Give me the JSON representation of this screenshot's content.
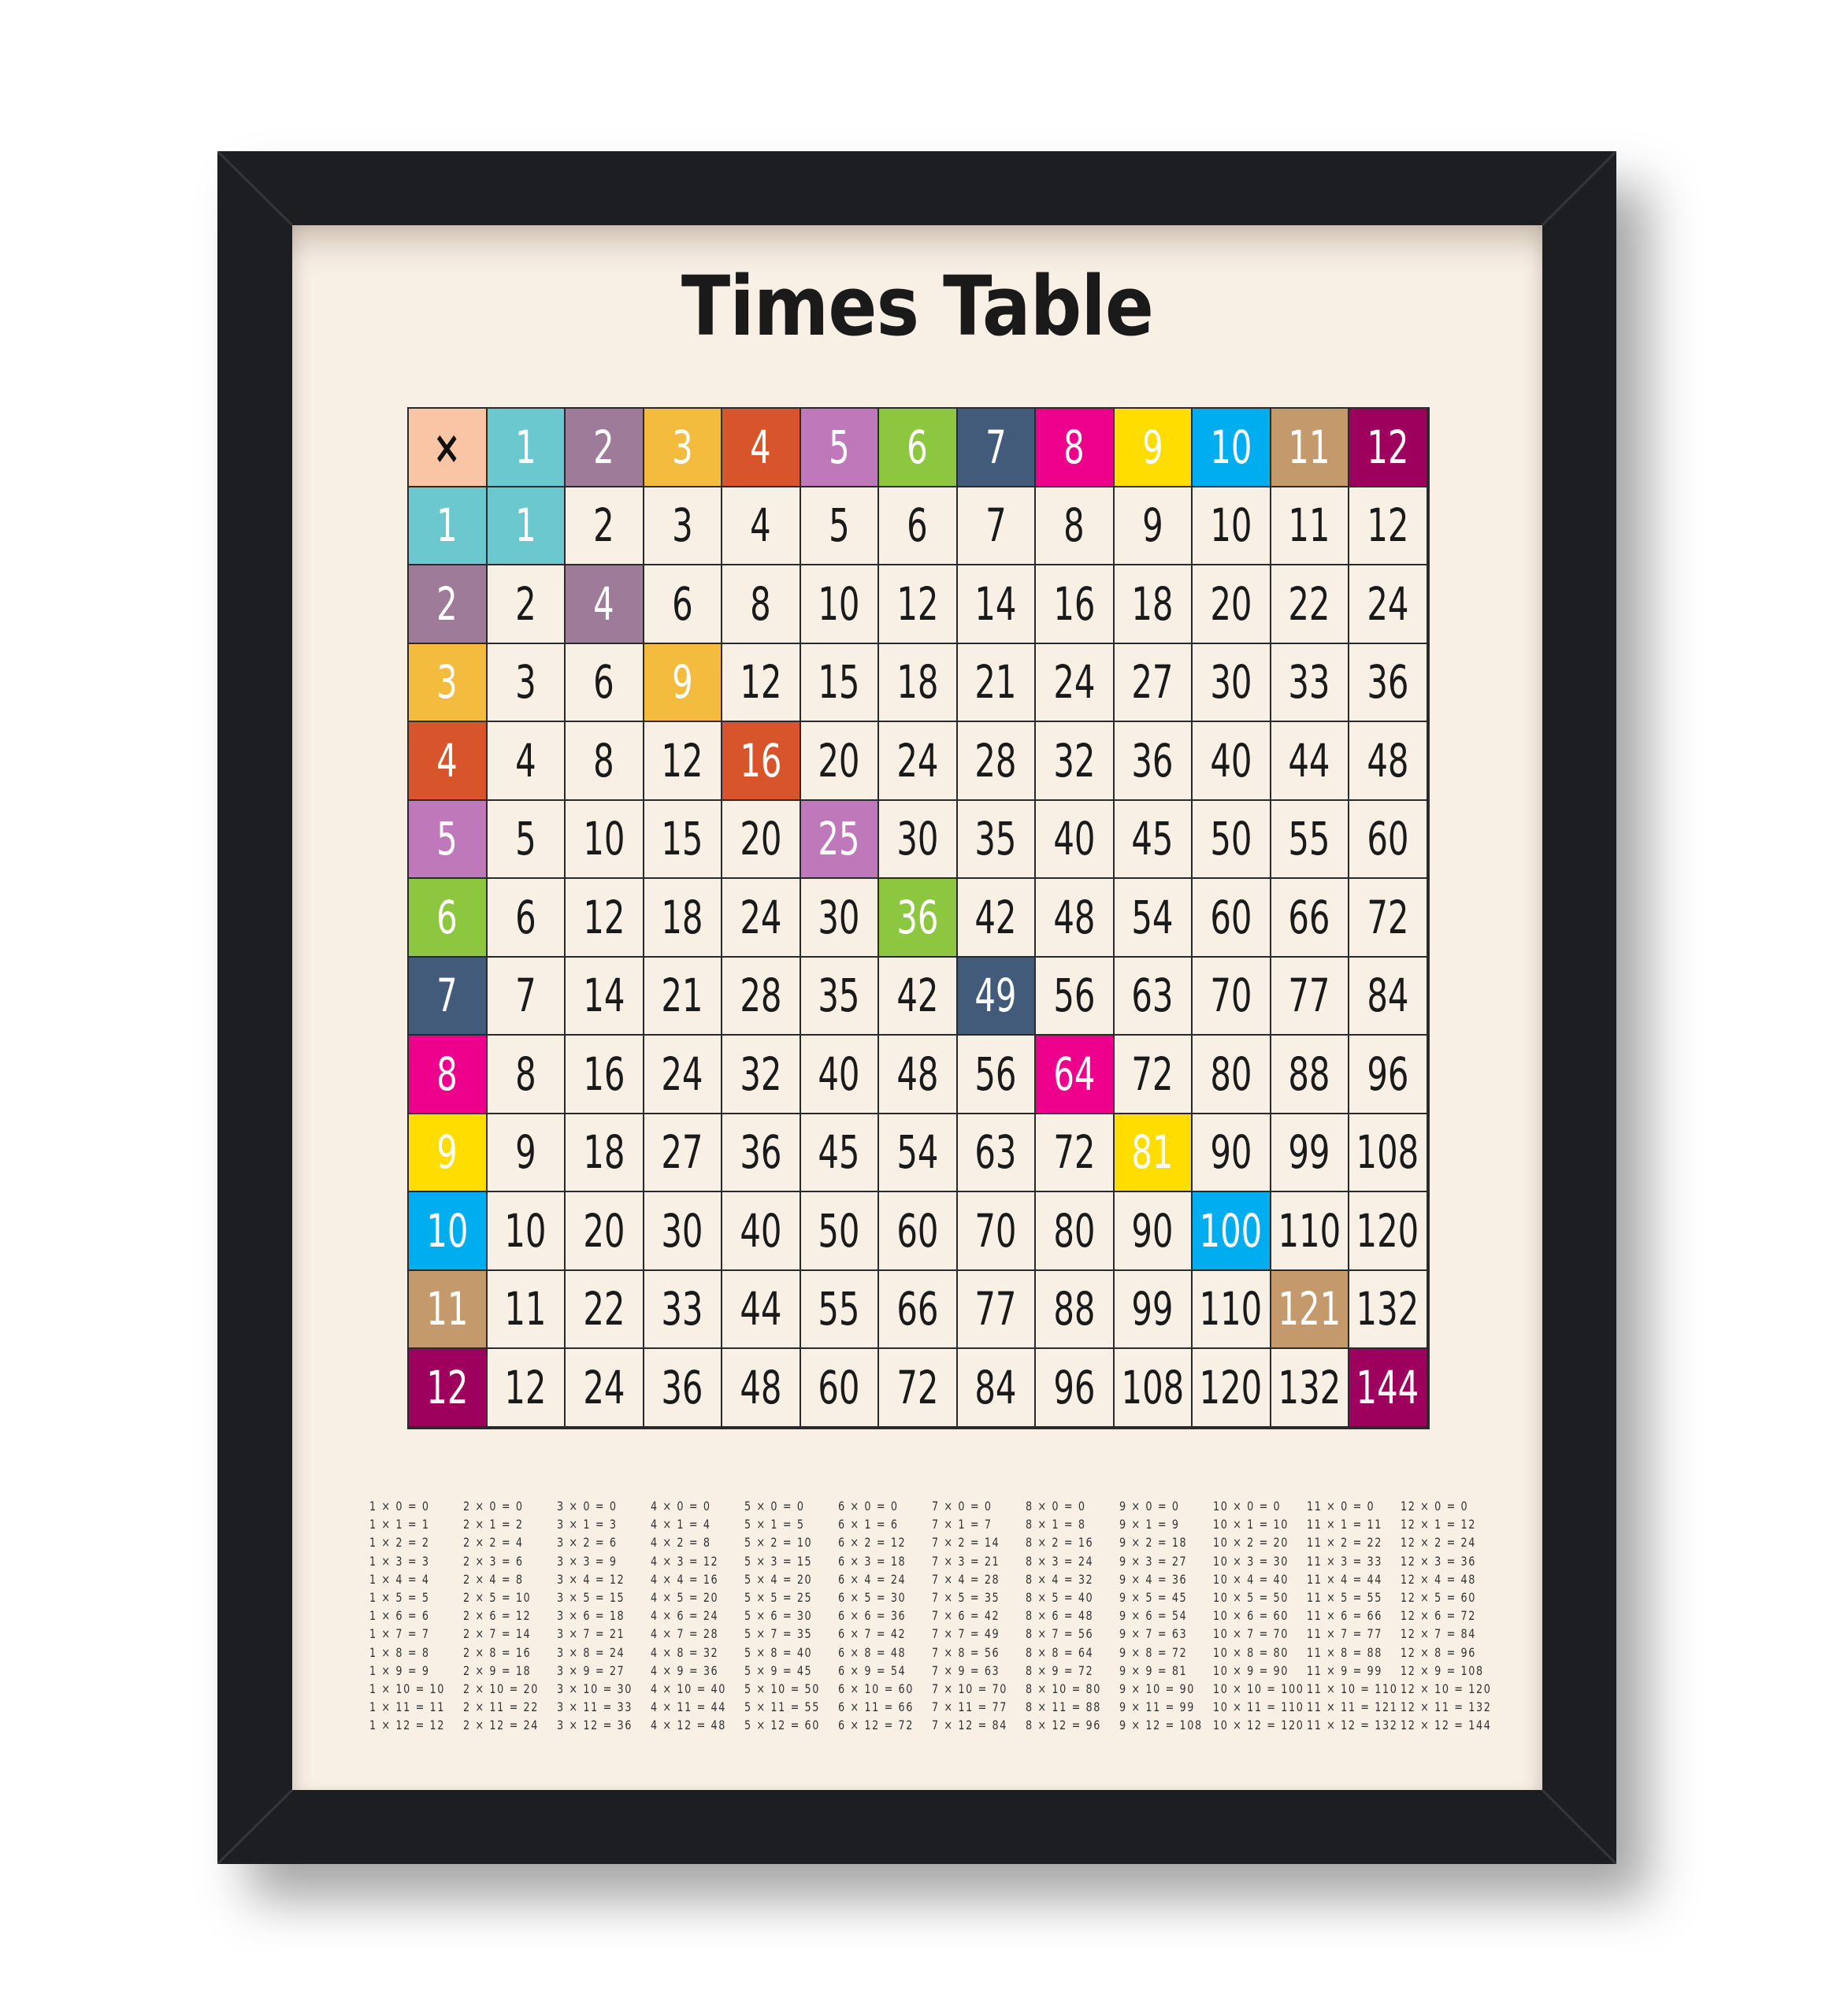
{
  "poster": {
    "title": "Times Table",
    "frame_color": "#1d1e21",
    "mat_color": "#f8efe5"
  },
  "table": {
    "corner": {
      "label": "×",
      "color": "#f9c5a5"
    },
    "headers": [
      {
        "label": "1",
        "color": "#6cc8cf"
      },
      {
        "label": "2",
        "color": "#9e7b99"
      },
      {
        "label": "3",
        "color": "#f3bc3e"
      },
      {
        "label": "4",
        "color": "#d8552b"
      },
      {
        "label": "5",
        "color": "#bf78b9"
      },
      {
        "label": "6",
        "color": "#8dc63f"
      },
      {
        "label": "7",
        "color": "#435b7a"
      },
      {
        "label": "8",
        "color": "#ec008c"
      },
      {
        "label": "9",
        "color": "#ffdd00"
      },
      {
        "label": "10",
        "color": "#00aeef"
      },
      {
        "label": "11",
        "color": "#c49a6c"
      },
      {
        "label": "12",
        "color": "#9e005d"
      }
    ],
    "rows": [
      [
        "1",
        "2",
        "3",
        "4",
        "5",
        "6",
        "7",
        "8",
        "9",
        "10",
        "11",
        "12"
      ],
      [
        "2",
        "4",
        "6",
        "8",
        "10",
        "12",
        "14",
        "16",
        "18",
        "20",
        "22",
        "24"
      ],
      [
        "3",
        "6",
        "9",
        "12",
        "15",
        "18",
        "21",
        "24",
        "27",
        "30",
        "33",
        "36"
      ],
      [
        "4",
        "8",
        "12",
        "16",
        "20",
        "24",
        "28",
        "32",
        "36",
        "40",
        "44",
        "48"
      ],
      [
        "5",
        "10",
        "15",
        "20",
        "25",
        "30",
        "35",
        "40",
        "45",
        "50",
        "55",
        "60"
      ],
      [
        "6",
        "12",
        "18",
        "24",
        "30",
        "36",
        "42",
        "48",
        "54",
        "60",
        "66",
        "72"
      ],
      [
        "7",
        "14",
        "21",
        "28",
        "35",
        "42",
        "49",
        "56",
        "63",
        "70",
        "77",
        "84"
      ],
      [
        "8",
        "16",
        "24",
        "32",
        "40",
        "48",
        "56",
        "64",
        "72",
        "80",
        "88",
        "96"
      ],
      [
        "9",
        "18",
        "27",
        "36",
        "45",
        "54",
        "63",
        "72",
        "81",
        "90",
        "99",
        "108"
      ],
      [
        "10",
        "20",
        "30",
        "40",
        "50",
        "60",
        "70",
        "80",
        "90",
        "100",
        "110",
        "120"
      ],
      [
        "11",
        "22",
        "33",
        "44",
        "55",
        "66",
        "77",
        "88",
        "99",
        "110",
        "121",
        "132"
      ],
      [
        "12",
        "24",
        "36",
        "48",
        "60",
        "72",
        "84",
        "96",
        "108",
        "120",
        "132",
        "144"
      ]
    ]
  },
  "facts": [
    [
      "1 × 0 = 0",
      "1 × 1 = 1",
      "1 × 2 = 2",
      "1 × 3 = 3",
      "1 × 4 = 4",
      "1 × 5 = 5",
      "1 × 6 = 6",
      "1 × 7 = 7",
      "1 × 8 = 8",
      "1 × 9 = 9",
      "1 × 10 = 10",
      "1 × 11 = 11",
      "1 × 12 = 12"
    ],
    [
      "2 × 0 = 0",
      "2 × 1 = 2",
      "2 × 2 = 4",
      "2 × 3 = 6",
      "2 × 4 = 8",
      "2 × 5 = 10",
      "2 × 6 = 12",
      "2 × 7 = 14",
      "2 × 8 = 16",
      "2 × 9 = 18",
      "2 × 10 = 20",
      "2 × 11 = 22",
      "2 × 12 = 24"
    ],
    [
      "3 × 0 = 0",
      "3 × 1 = 3",
      "3 × 2 = 6",
      "3 × 3 = 9",
      "3 × 4 = 12",
      "3 × 5 = 15",
      "3 × 6 = 18",
      "3 × 7 = 21",
      "3 × 8 = 24",
      "3 × 9 = 27",
      "3 × 10 = 30",
      "3 × 11 = 33",
      "3 × 12 = 36"
    ],
    [
      "4 × 0 = 0",
      "4 × 1 = 4",
      "4 × 2 = 8",
      "4 × 3 = 12",
      "4 × 4 = 16",
      "4 × 5 = 20",
      "4 × 6 = 24",
      "4 × 7 = 28",
      "4 × 8 = 32",
      "4 × 9 = 36",
      "4 × 10 = 40",
      "4 × 11 = 44",
      "4 × 12 = 48"
    ],
    [
      "5 × 0 = 0",
      "5 × 1 = 5",
      "5 × 2 = 10",
      "5 × 3 = 15",
      "5 × 4 = 20",
      "5 × 5 = 25",
      "5 × 6 = 30",
      "5 × 7 = 35",
      "5 × 8 = 40",
      "5 × 9 = 45",
      "5 × 10 = 50",
      "5 × 11 = 55",
      "5 × 12 = 60"
    ],
    [
      "6 × 0 = 0",
      "6 × 1 = 6",
      "6 × 2 = 12",
      "6 × 3 = 18",
      "6 × 4 = 24",
      "6 × 5 = 30",
      "6 × 6 = 36",
      "6 × 7 = 42",
      "6 × 8 = 48",
      "6 × 9 = 54",
      "6 × 10 = 60",
      "6 × 11 = 66",
      "6 × 12 = 72"
    ],
    [
      "7 × 0 = 0",
      "7 × 1 = 7",
      "7 × 2 = 14",
      "7 × 3 = 21",
      "7 × 4 = 28",
      "7 × 5 = 35",
      "7 × 6 = 42",
      "7 × 7 = 49",
      "7 × 8 = 56",
      "7 × 9 = 63",
      "7 × 10 = 70",
      "7 × 11 = 77",
      "7 × 12 = 84"
    ],
    [
      "8 × 0 = 0",
      "8 × 1 = 8",
      "8 × 2 = 16",
      "8 × 3 = 24",
      "8 × 4 = 32",
      "8 × 5 = 40",
      "8 × 6 = 48",
      "8 × 7 = 56",
      "8 × 8 = 64",
      "8 × 9 = 72",
      "8 × 10 = 80",
      "8 × 11 = 88",
      "8 × 12 = 96"
    ],
    [
      "9 × 0 = 0",
      "9 × 1 = 9",
      "9 × 2 = 18",
      "9 × 3 = 27",
      "9 × 4 = 36",
      "9 × 5 = 45",
      "9 × 6 = 54",
      "9 × 7 = 63",
      "9 × 8 = 72",
      "9 × 9 = 81",
      "9 × 10 = 90",
      "9 × 11 = 99",
      "9 × 12 = 108"
    ],
    [
      "10 × 0 = 0",
      "10 × 1 = 10",
      "10 × 2 = 20",
      "10 × 3 = 30",
      "10 × 4 = 40",
      "10 × 5 = 50",
      "10 × 6 = 60",
      "10 × 7 = 70",
      "10 × 8 = 80",
      "10 × 9 = 90",
      "10 × 10 = 100",
      "10 × 11 = 110",
      "10 × 12 = 120"
    ],
    [
      "11 × 0 = 0",
      "11 × 1 = 11",
      "11 × 2 = 22",
      "11 × 3 = 33",
      "11 × 4 = 44",
      "11 × 5 = 55",
      "11 × 6 = 66",
      "11 × 7 = 77",
      "11 × 8 = 88",
      "11 × 9 = 99",
      "11 × 10 = 110",
      "11 × 11 = 121",
      "11 × 12 = 132"
    ],
    [
      "12 × 0 = 0",
      "12 × 1 = 12",
      "12 × 2 = 24",
      "12 × 3 = 36",
      "12 × 4 = 48",
      "12 × 5 = 60",
      "12 × 6 = 72",
      "12 × 7 = 84",
      "12 × 8 = 96",
      "12 × 9 = 108",
      "12 × 10 = 120",
      "12 × 11 = 132",
      "12 × 12 = 144"
    ]
  ]
}
